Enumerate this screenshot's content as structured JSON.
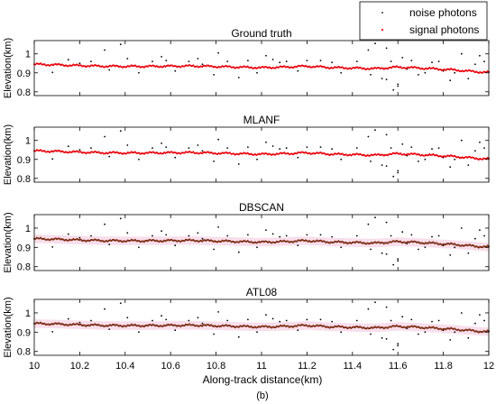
{
  "chart_data": {
    "type": "scatter",
    "subfigure_label": "(b)",
    "xlabel": "Along-track distance(km)",
    "xlim": [
      10,
      12
    ],
    "x_ticks": [
      10,
      10.2,
      10.4,
      10.6,
      10.8,
      11,
      11.2,
      11.4,
      11.6,
      11.8,
      12
    ],
    "x_tick_labels": [
      "10",
      "10.2",
      "10.4",
      "10.6",
      "10.8",
      "11",
      "11.2",
      "11.4",
      "11.6",
      "11.8",
      "12"
    ],
    "legend": {
      "position": "top-right",
      "entries": [
        {
          "label": "noise photons",
          "color": "#000000"
        },
        {
          "label": "signal photons",
          "color": "#e8000b"
        }
      ]
    },
    "panels": [
      {
        "title": "Ground truth",
        "ylabel": "Elevation(km)",
        "ylim": [
          0.78,
          1.07
        ],
        "y_ticks": [
          0.8,
          0.9,
          1
        ],
        "y_tick_labels": [
          "0.8",
          "0.9",
          "1"
        ],
        "signal_color": "#e8000b",
        "noise_band": false
      },
      {
        "title": "MLANF",
        "ylabel": "Elevation(km)",
        "ylim": [
          0.78,
          1.07
        ],
        "y_ticks": [
          0.8,
          0.9,
          1
        ],
        "y_tick_labels": [
          "0.8",
          "0.9",
          "1"
        ],
        "signal_color": "#e8000b",
        "noise_band": false
      },
      {
        "title": "DBSCAN",
        "ylabel": "Elevation(km)",
        "ylim": [
          0.78,
          1.07
        ],
        "y_ticks": [
          0.8,
          0.9,
          1
        ],
        "y_tick_labels": [
          "0.8",
          "0.9",
          "1"
        ],
        "signal_color": "#7a2a10",
        "noise_band": true
      },
      {
        "title": "ATL08",
        "ylabel": "Elevation(km)",
        "ylim": [
          0.78,
          1.07
        ],
        "y_ticks": [
          0.8,
          0.9,
          1
        ],
        "y_tick_labels": [
          "0.8",
          "0.9",
          "1"
        ],
        "signal_color": "#7a2a10",
        "noise_band": true
      }
    ],
    "signal_profile": {
      "x": [
        10,
        10.1,
        10.2,
        10.3,
        10.4,
        10.5,
        10.6,
        10.7,
        10.8,
        10.9,
        11,
        11.1,
        11.2,
        11.3,
        11.4,
        11.5,
        11.6,
        11.7,
        11.8,
        11.85,
        11.9,
        11.95,
        12
      ],
      "y": [
        0.945,
        0.942,
        0.938,
        0.935,
        0.934,
        0.934,
        0.935,
        0.936,
        0.933,
        0.93,
        0.927,
        0.93,
        0.935,
        0.928,
        0.925,
        0.922,
        0.93,
        0.925,
        0.918,
        0.915,
        0.91,
        0.905,
        0.902
      ]
    },
    "noise_photons": {
      "x": [
        10.08,
        10.15,
        10.2,
        10.25,
        10.31,
        10.33,
        10.38,
        10.41,
        10.46,
        10.52,
        10.58,
        10.62,
        10.68,
        10.74,
        10.79,
        10.81,
        10.85,
        10.9,
        10.94,
        10.98,
        11.02,
        11.05,
        11.11,
        11.16,
        11.2,
        11.26,
        11.31,
        11.35,
        11.42,
        11.47,
        11.5,
        11.53,
        11.55,
        11.57,
        11.58,
        11.6,
        11.62,
        11.64,
        11.66,
        11.69,
        11.72,
        11.75,
        11.78,
        11.8,
        11.83,
        11.85,
        11.88,
        11.91,
        11.94,
        11.96,
        11.98,
        11.6,
        11.55,
        11.48,
        10.56,
        10.72,
        11.08
      ],
      "y": [
        0.902,
        0.969,
        0.95,
        0.96,
        1.02,
        0.915,
        1.05,
        0.975,
        0.9,
        0.96,
        0.965,
        0.91,
        0.96,
        0.945,
        0.89,
        1.005,
        0.96,
        0.875,
        0.965,
        0.9,
        0.99,
        0.97,
        0.96,
        0.91,
        0.965,
        0.965,
        0.955,
        0.9,
        0.96,
        1.02,
        1.055,
        0.87,
        1.03,
        0.96,
        0.81,
        0.84,
        0.98,
        0.92,
        0.965,
        0.89,
        0.9,
        0.955,
        0.96,
        0.91,
        0.86,
        0.9,
        1.0,
        0.87,
        0.945,
        0.99,
        0.96,
        0.83,
        0.865,
        0.89,
        0.985,
        0.975,
        0.955
      ]
    }
  }
}
